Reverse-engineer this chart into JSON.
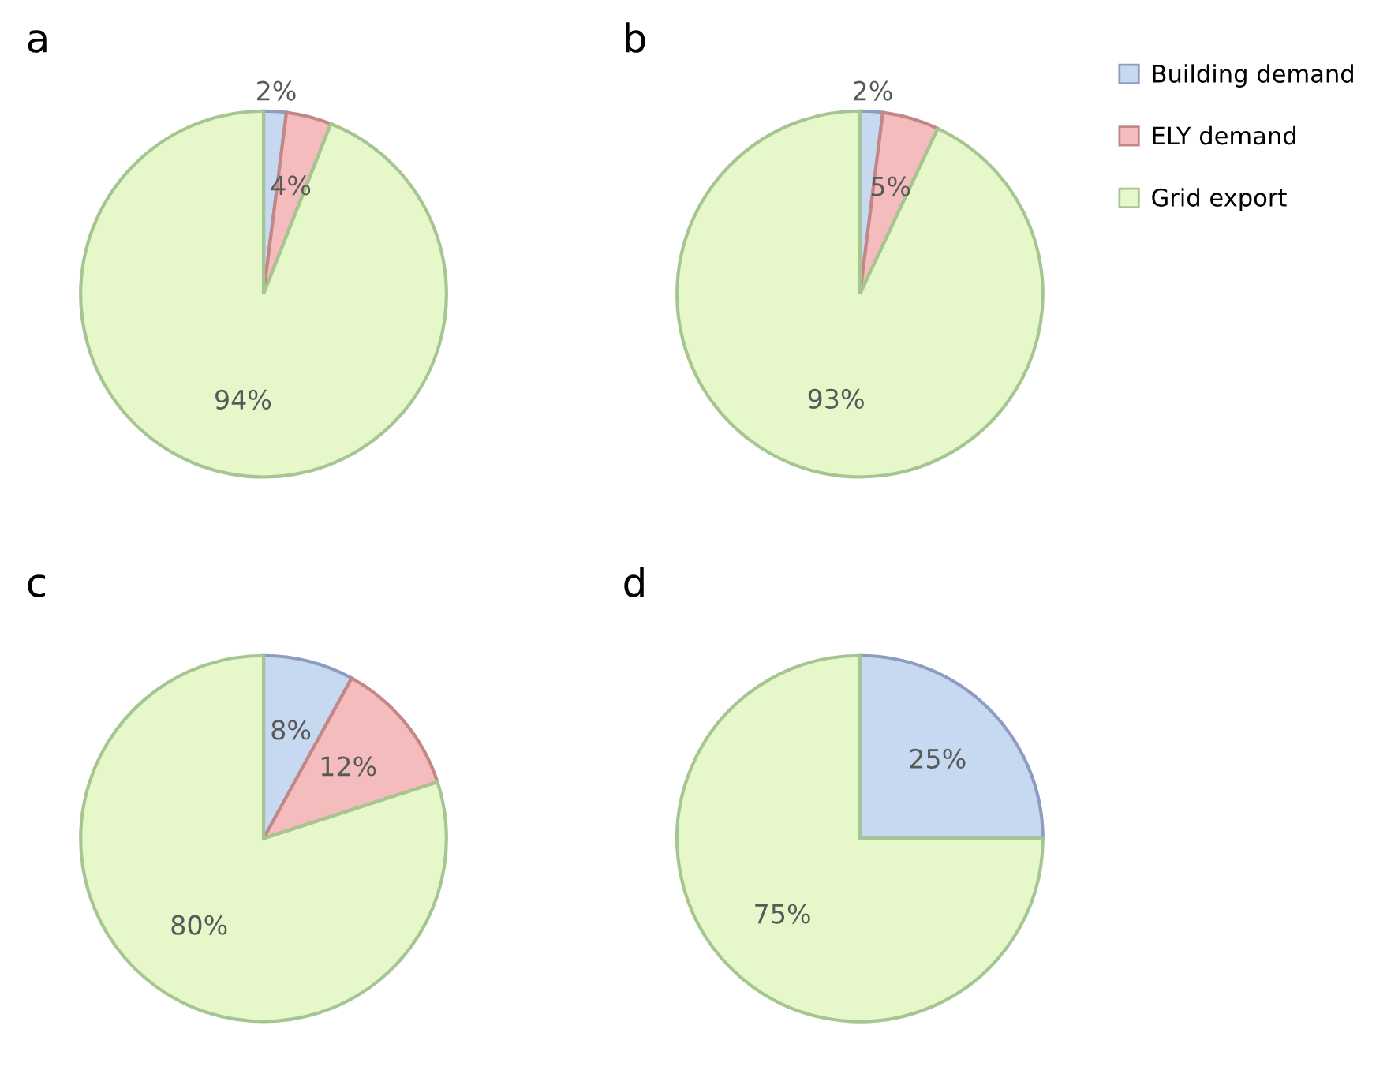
{
  "chart_data": [
    {
      "type": "pie",
      "title": "a",
      "categories": [
        null,
        null,
        null
      ],
      "values": [
        2,
        4,
        94
      ],
      "value_labels": [
        "2%",
        "4%",
        "94%"
      ],
      "colors": [
        "#c6d9f1",
        "#f4bcbc",
        "#e6f7c9"
      ],
      "legend": false
    },
    {
      "type": "pie",
      "title": "b",
      "categories": [
        "Building demand",
        "ELY demand",
        "Grid export"
      ],
      "values": [
        2,
        5,
        93
      ],
      "value_labels": [
        "2%",
        "5%",
        "93%"
      ],
      "colors": [
        "#c6d9f1",
        "#f4bcbc",
        "#e6f7c9"
      ],
      "legend": "right"
    },
    {
      "type": "pie",
      "title": "c",
      "categories": [
        null,
        null,
        null
      ],
      "values": [
        8,
        12,
        80
      ],
      "value_labels": [
        "8%",
        "12%",
        "80%"
      ],
      "colors": [
        "#c6d9f1",
        "#f4bcbc",
        "#e6f7c9"
      ],
      "legend": false
    },
    {
      "type": "pie",
      "title": "d",
      "categories": [
        null,
        null
      ],
      "values": [
        25,
        75
      ],
      "value_labels": [
        "25%",
        "75%"
      ],
      "colors": [
        "#c6d9f1",
        "#e6f7c9"
      ],
      "legend": false
    }
  ]
}
